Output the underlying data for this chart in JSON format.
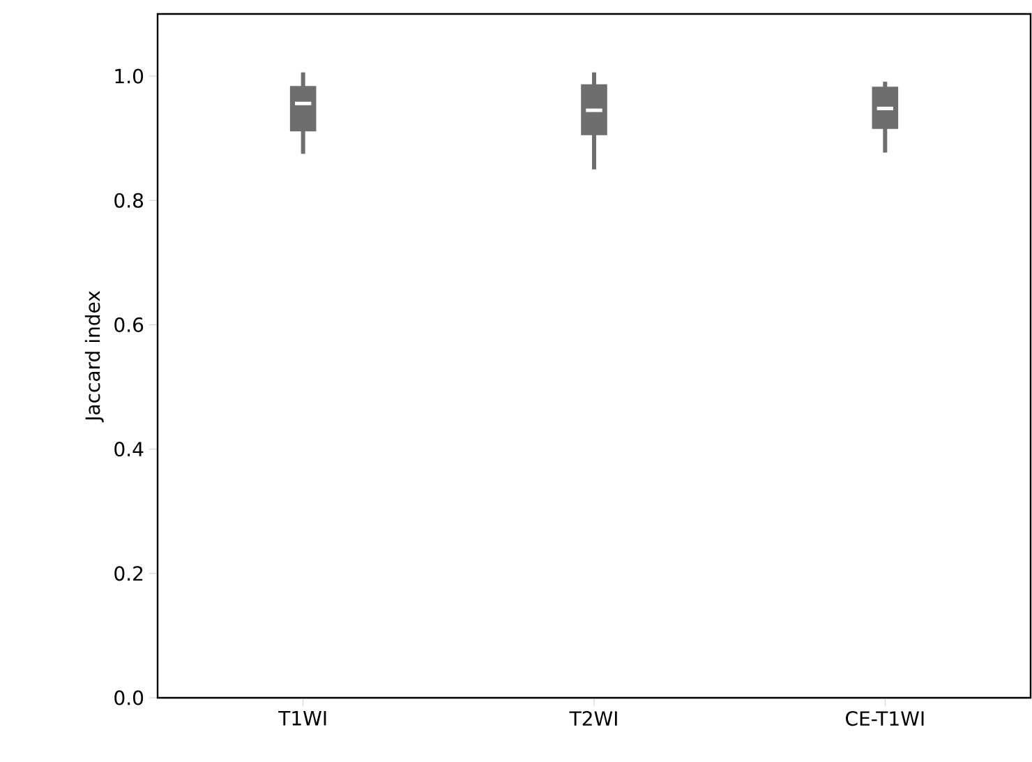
{
  "chart_data": {
    "type": "box",
    "ylabel": "Jaccard index",
    "categories": [
      "T1WI",
      "T2WI",
      "CE-T1WI"
    ],
    "boxes": [
      {
        "low": 0.875,
        "q1": 0.911,
        "median": 0.956,
        "q3": 0.984,
        "high": 1.006
      },
      {
        "low": 0.85,
        "q1": 0.905,
        "median": 0.945,
        "q3": 0.987,
        "high": 1.006
      },
      {
        "low": 0.877,
        "q1": 0.915,
        "median": 0.948,
        "q3": 0.983,
        "high": 0.991
      }
    ],
    "color": "#6e6e6e",
    "ylim": [
      0,
      1.1
    ],
    "yticks": [
      {
        "value": 0,
        "label": "0.0"
      },
      {
        "value": 0.2,
        "label": "0.2"
      },
      {
        "value": 0.4,
        "label": "0.4"
      },
      {
        "value": 0.6,
        "label": "0.6"
      },
      {
        "value": 0.8,
        "label": "0.8"
      },
      {
        "value": 1,
        "label": "1.0"
      }
    ]
  }
}
